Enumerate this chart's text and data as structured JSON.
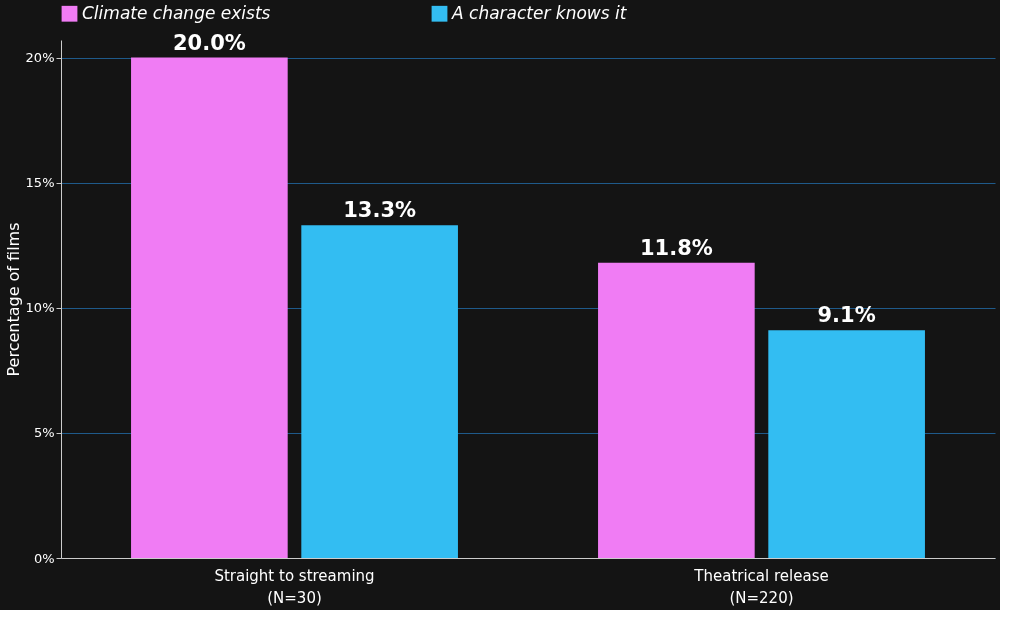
{
  "chart_data": {
    "type": "bar",
    "ylabel": "Percentage of films",
    "categories": [
      "Straight to streaming\n(N=30)",
      "Theatrical release\n(N=220)"
    ],
    "series": [
      {
        "name": "Climate change exists",
        "color": "#f07cf4",
        "values": [
          20.0,
          11.8
        ],
        "value_labels": [
          "20.0%",
          "11.8%"
        ]
      },
      {
        "name": "A character knows it",
        "color": "#33bdf2",
        "values": [
          13.3,
          9.1
        ],
        "value_labels": [
          "13.3%",
          "9.1%"
        ]
      }
    ],
    "ylim": [
      0,
      20.7
    ],
    "yticks": [
      {
        "value": 0,
        "label": "0%"
      },
      {
        "value": 5,
        "label": "5%"
      },
      {
        "value": 10,
        "label": "10%"
      },
      {
        "value": 15,
        "label": "15%"
      },
      {
        "value": 20,
        "label": "20%"
      }
    ],
    "grid": "y",
    "legend": "top"
  }
}
